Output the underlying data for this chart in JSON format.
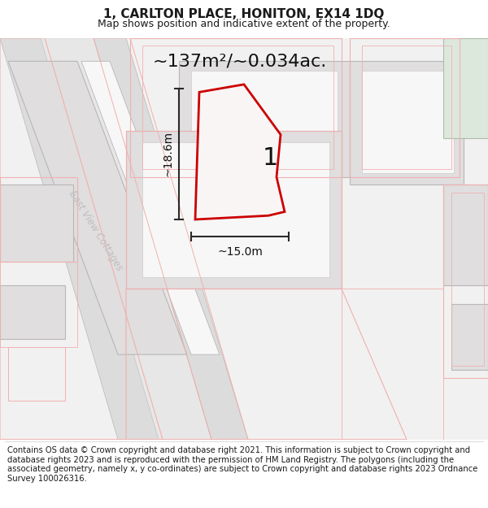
{
  "title": "1, CARLTON PLACE, HONITON, EX14 1DQ",
  "subtitle": "Map shows position and indicative extent of the property.",
  "area_text": "~137m²/~0.034ac.",
  "label_number": "1",
  "dim_height": "~18.6m",
  "dim_width": "~15.0m",
  "street_label": "East View Cottages",
  "footer_text": "Contains OS data © Crown copyright and database right 2021. This information is subject to Crown copyright and database rights 2023 and is reproduced with the permission of HM Land Registry. The polygons (including the associated geometry, namely x, y co-ordinates) are subject to Crown copyright and database rights 2023 Ordnance Survey 100026316.",
  "map_bg": "#f2f1f1",
  "light_gray": "#e0dedf",
  "mid_gray": "#d5d3d3",
  "dark_gray_line": "#b8b6b6",
  "white_fill": "#f8f7f7",
  "light_red": "#f0b0b0",
  "red_outline": "#cc0000",
  "dim_color": "#2a2a2a",
  "text_color": "#1a1a1a",
  "street_color": "#c0bebf",
  "green_fill": "#dde8dd",
  "title_fontsize": 11,
  "subtitle_fontsize": 9,
  "area_fontsize": 16,
  "footer_fontsize": 7.2
}
